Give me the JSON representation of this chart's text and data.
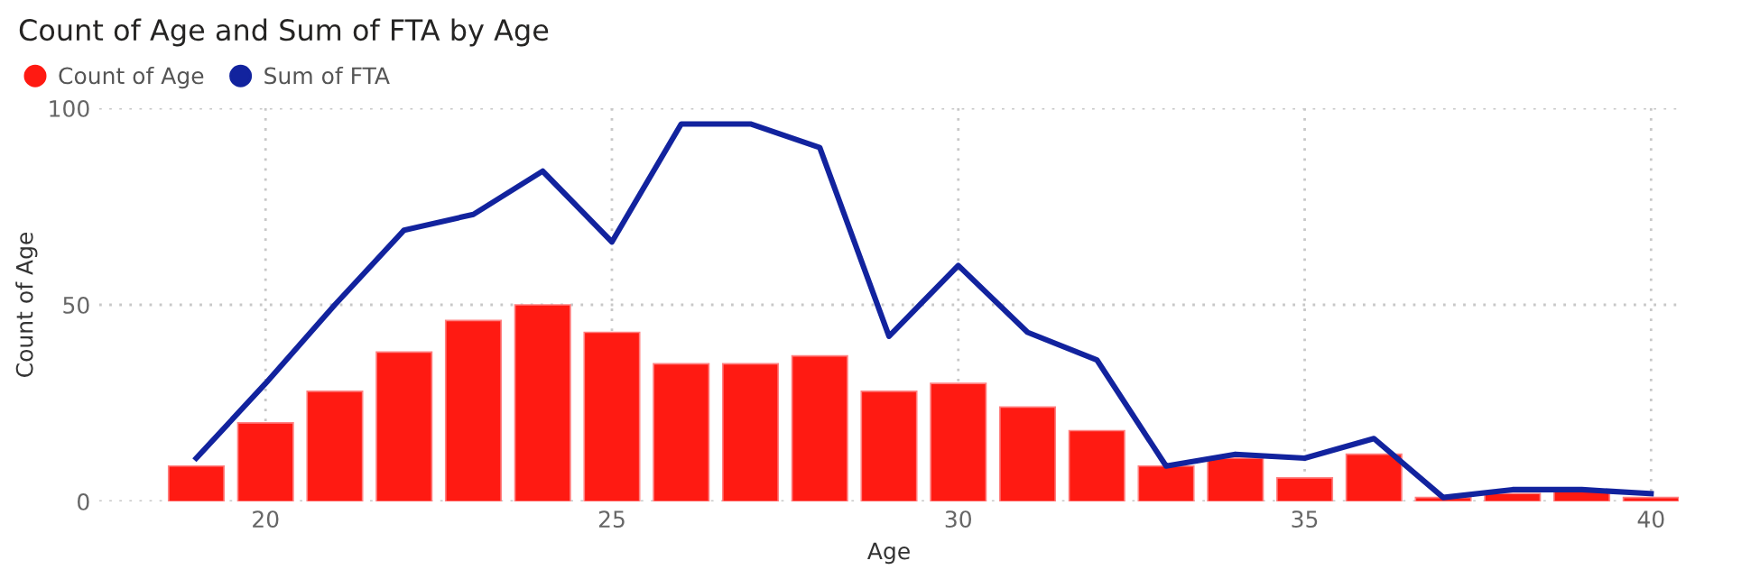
{
  "chart_data": {
    "type": "bar",
    "title": "Count of Age and Sum of FTA by Age",
    "xlabel": "Age",
    "ylabel": "Count of Age",
    "x": [
      19,
      20,
      21,
      22,
      23,
      24,
      25,
      26,
      27,
      28,
      29,
      30,
      31,
      32,
      33,
      34,
      35,
      36,
      37,
      38,
      39,
      40
    ],
    "series": [
      {
        "name": "Count of Age",
        "color": "#ff1a12",
        "values": [
          9,
          20,
          28,
          38,
          46,
          50,
          43,
          35,
          35,
          37,
          28,
          30,
          24,
          18,
          9,
          11,
          6,
          12,
          1,
          2,
          3,
          1
        ]
      },
      {
        "name": "Sum of FTA",
        "type": "line",
        "color": "#12239e",
        "values": [
          11,
          30,
          50,
          69,
          73,
          84,
          66,
          96,
          96,
          90,
          42,
          60,
          43,
          36,
          9,
          12,
          11,
          16,
          1,
          3,
          3,
          2
        ]
      }
    ],
    "xlim": [
      17.6,
      40.4
    ],
    "xticks": [
      20,
      25,
      30,
      35,
      40
    ],
    "ylim": [
      0,
      100
    ],
    "yticks": [
      0,
      50,
      100
    ],
    "grid": true,
    "legend": "top left",
    "marker": "none",
    "line_style": "solid"
  }
}
